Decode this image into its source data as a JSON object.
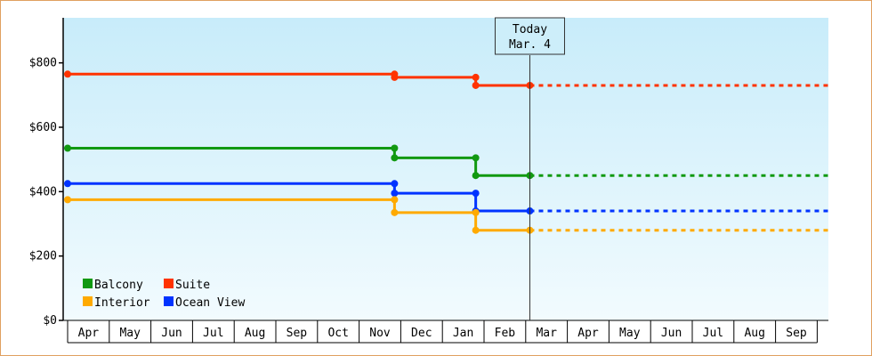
{
  "chart_data": {
    "type": "line",
    "step": true,
    "x_labels": [
      "Apr",
      "May",
      "Jun",
      "Jul",
      "Aug",
      "Sep",
      "Oct",
      "Nov",
      "Dec",
      "Jan",
      "Feb",
      "Mar",
      "Apr",
      "May",
      "Jun",
      "Jul",
      "Aug",
      "Sep"
    ],
    "ylim": [
      0,
      940
    ],
    "yticks": [
      {
        "value": 0,
        "label": "$0"
      },
      {
        "value": 200,
        "label": "$200"
      },
      {
        "value": 400,
        "label": "$400"
      },
      {
        "value": 600,
        "label": "$600"
      },
      {
        "value": 800,
        "label": "$800"
      }
    ],
    "today": {
      "title": "Today",
      "date": "Mar. 4",
      "x": 11.1
    },
    "projection_end_x": 18.3,
    "series": [
      {
        "name": "Suite",
        "color": "#ff3300",
        "points": [
          [
            0,
            765
          ],
          [
            7.85,
            765
          ],
          [
            7.85,
            755
          ],
          [
            9.8,
            755
          ],
          [
            9.8,
            730
          ],
          [
            11.1,
            730
          ]
        ],
        "projection": 730
      },
      {
        "name": "Balcony",
        "color": "#119911",
        "points": [
          [
            0,
            535
          ],
          [
            7.85,
            535
          ],
          [
            7.85,
            505
          ],
          [
            9.8,
            505
          ],
          [
            9.8,
            450
          ],
          [
            11.1,
            450
          ]
        ],
        "projection": 450
      },
      {
        "name": "Ocean View",
        "color": "#0033ff",
        "points": [
          [
            0,
            425
          ],
          [
            7.85,
            425
          ],
          [
            7.85,
            395
          ],
          [
            9.8,
            395
          ],
          [
            9.8,
            340
          ],
          [
            11.1,
            340
          ]
        ],
        "projection": 340
      },
      {
        "name": "Interior",
        "color": "#ffaa00",
        "points": [
          [
            0,
            375
          ],
          [
            7.85,
            375
          ],
          [
            7.85,
            335
          ],
          [
            9.8,
            335
          ],
          [
            9.8,
            280
          ],
          [
            11.1,
            280
          ]
        ],
        "projection": 280
      }
    ],
    "legend": [
      {
        "name": "Balcony",
        "color": "#119911"
      },
      {
        "name": "Suite",
        "color": "#ff3300"
      },
      {
        "name": "Interior",
        "color": "#ffaa00"
      },
      {
        "name": "Ocean View",
        "color": "#0033ff"
      }
    ]
  }
}
